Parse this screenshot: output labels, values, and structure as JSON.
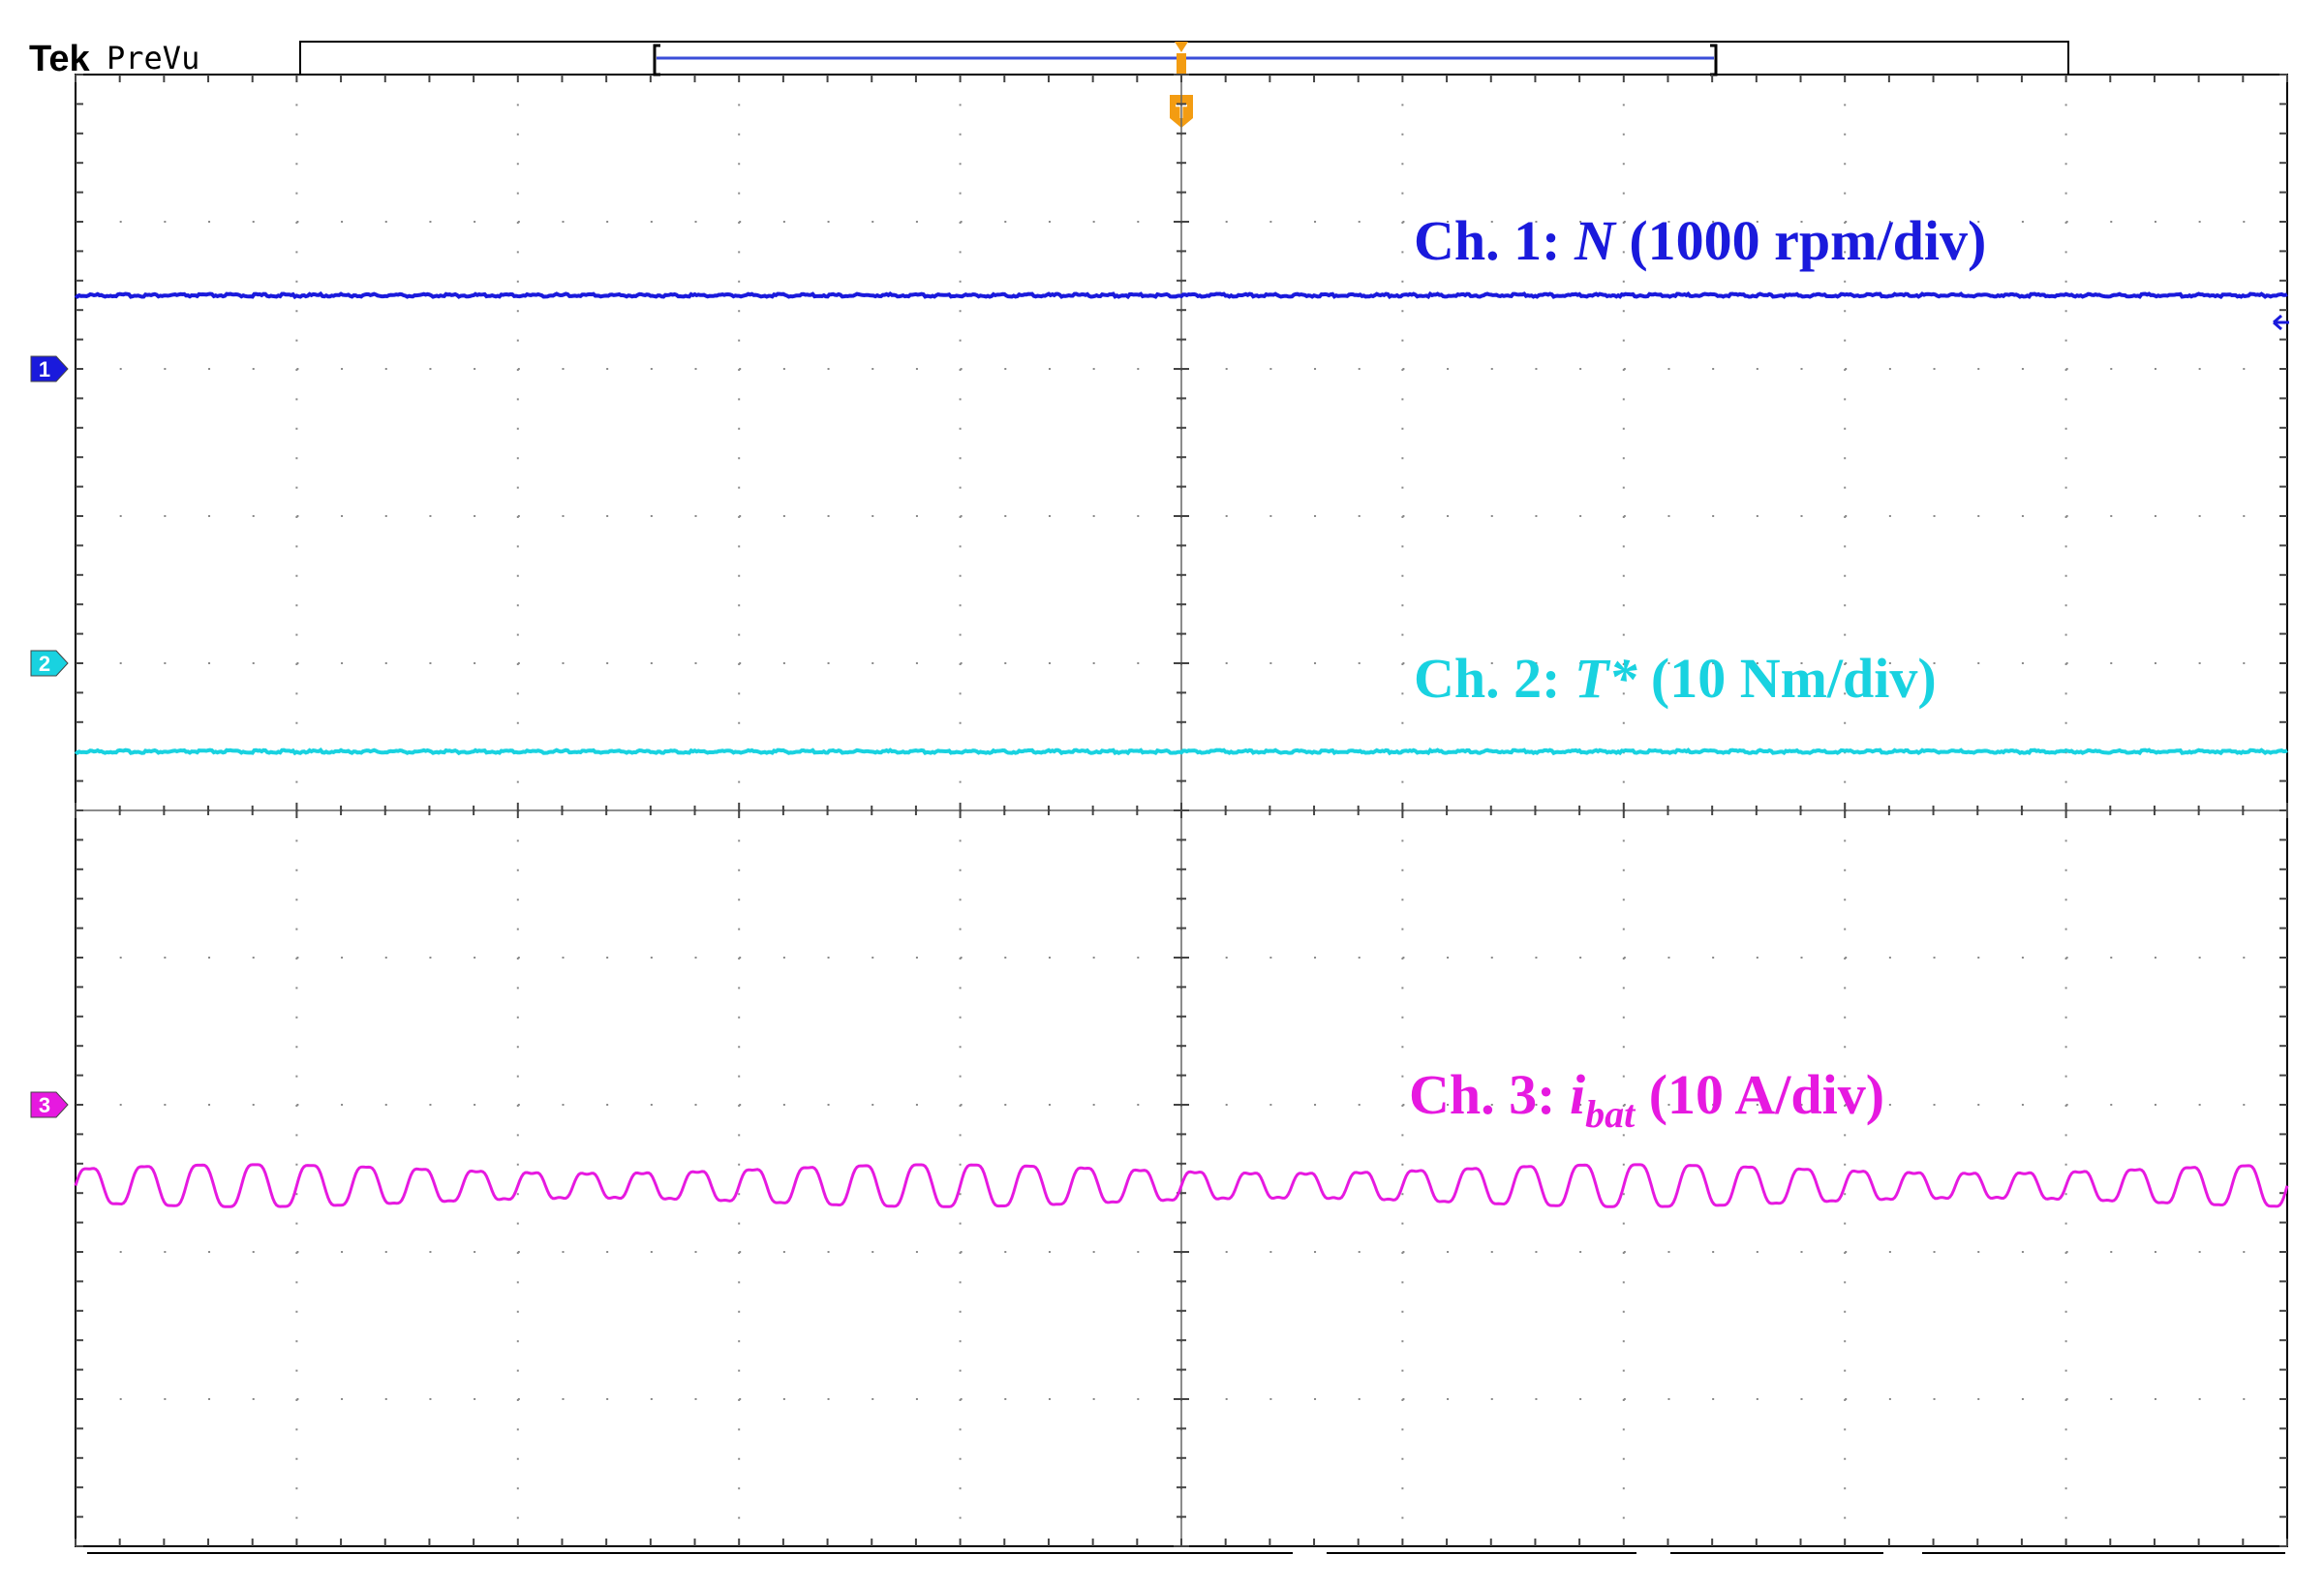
{
  "header": {
    "brand": "Tek",
    "mode": "PreVu",
    "trigger_marker": "T"
  },
  "colors": {
    "ch1": "#1a1adc",
    "ch2": "#19d2e0",
    "ch3": "#e619e0",
    "grid": "#8a8a8a",
    "trigger": "#f39c12"
  },
  "chart_data": {
    "type": "line",
    "title": "",
    "xlabel": "",
    "ylabel": "",
    "grid": true,
    "divisions": {
      "x": 10,
      "y": 10
    },
    "series": [
      {
        "name": "Ch. 1",
        "marker": "1",
        "label_prefix": "Ch. 1: ",
        "label_var": "N",
        "label_sub": "",
        "label_suffix": " (1000 rpm/div)",
        "color": "#1a1adc",
        "baseline_div": 8.0,
        "level_div": 0.5,
        "ripple_div": 0.0,
        "ripple_cycles": 0
      },
      {
        "name": "Ch. 2",
        "marker": "2",
        "label_prefix": "Ch. 2: ",
        "label_var": "T*",
        "label_sub": "",
        "label_suffix": " (10 Nm/div)",
        "color": "#19d2e0",
        "baseline_div": 6.0,
        "level_div": -0.6,
        "ripple_div": 0.0,
        "ripple_cycles": 0
      },
      {
        "name": "Ch. 3",
        "marker": "3",
        "label_prefix": "Ch. 3: ",
        "label_var": "i",
        "label_sub": "bat",
        "label_suffix": " (10 A/div)",
        "color": "#e619e0",
        "baseline_div": 3.0,
        "level_div": -0.55,
        "ripple_div": 0.13,
        "ripple_cycles": 40
      }
    ]
  }
}
